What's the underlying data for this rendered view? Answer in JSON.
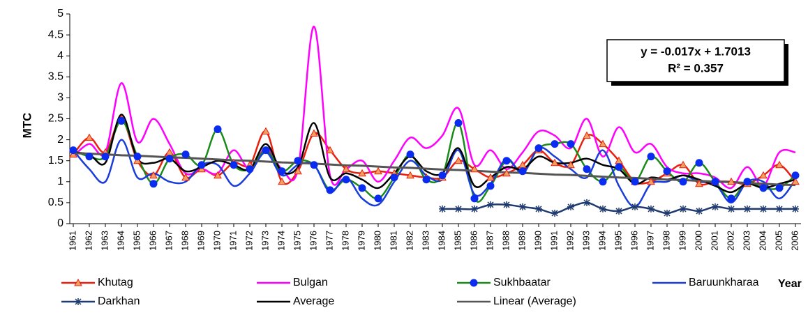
{
  "chart_data": {
    "type": "line",
    "y_label": "MTC",
    "x_label": "Year",
    "annotation": [
      "y = -0.017x + 1.7013",
      "R² = 0.357"
    ],
    "categories": [
      "1961",
      "1962",
      "1963",
      "1964",
      "1965",
      "1966",
      "1967",
      "1968",
      "1969",
      "1970",
      "1971",
      "1972",
      "1973",
      "1974",
      "1975",
      "1976",
      "1977",
      "1978",
      "1979",
      "1980",
      "1981",
      "1982",
      "1983",
      "1984",
      "1985",
      "1986",
      "1987",
      "1988",
      "1989",
      "1990",
      "1991",
      "1992",
      "1993",
      "1994",
      "1995",
      "1996",
      "1997",
      "1998",
      "1999",
      "2000",
      "2001",
      "2002",
      "2003",
      "2004",
      "2005",
      "2006"
    ],
    "ylim": [
      0,
      5
    ],
    "yticks": [
      0,
      0.5,
      1,
      1.5,
      2,
      2.5,
      3,
      3.5,
      4,
      4.5,
      5
    ],
    "smooth": true,
    "series": [
      {
        "name": "Khutag",
        "color": "#e8200f",
        "marker": "triangle",
        "marker_color": "#f0a060",
        "values": [
          1.65,
          2.05,
          1.7,
          2.5,
          1.5,
          1.15,
          1.7,
          1.1,
          1.3,
          1.15,
          1.45,
          1.4,
          2.2,
          1.0,
          1.25,
          2.15,
          1.75,
          1.3,
          1.2,
          1.25,
          1.2,
          1.15,
          1.1,
          1.1,
          1.5,
          1.3,
          1.1,
          1.2,
          1.4,
          1.75,
          1.45,
          1.4,
          2.1,
          1.9,
          1.5,
          1.0,
          1.0,
          1.2,
          1.4,
          0.95,
          1.0,
          1.0,
          0.95,
          1.15,
          1.4,
          1.0
        ]
      },
      {
        "name": "Bulgan",
        "color": "#ff00ff",
        "values": [
          1.6,
          1.9,
          1.7,
          3.35,
          1.95,
          2.5,
          1.9,
          1.2,
          1.3,
          1.2,
          1.75,
          1.3,
          1.8,
          1.3,
          1.3,
          4.7,
          1.15,
          1.3,
          1.5,
          1.0,
          1.5,
          2.05,
          1.8,
          2.1,
          2.75,
          1.4,
          1.75,
          1.3,
          1.7,
          2.2,
          2.1,
          1.8,
          2.5,
          1.6,
          2.3,
          1.7,
          1.9,
          1.35,
          1.2,
          1.2,
          1.1,
          0.85,
          1.35,
          0.9,
          1.7,
          1.7
        ]
      },
      {
        "name": "Sukhbaatar",
        "color": "#1a8a1a",
        "marker": "circle",
        "marker_color": "#0a2cf0",
        "values": [
          1.75,
          1.6,
          1.6,
          2.45,
          1.6,
          0.95,
          1.55,
          1.65,
          1.4,
          2.25,
          1.4,
          1.3,
          1.75,
          1.25,
          1.5,
          1.4,
          0.8,
          1.05,
          0.85,
          0.6,
          1.1,
          1.65,
          1.05,
          1.15,
          2.4,
          0.6,
          0.9,
          1.5,
          1.25,
          1.8,
          1.9,
          1.9,
          1.3,
          1.0,
          1.35,
          1.0,
          1.6,
          1.25,
          1.0,
          1.45,
          1.0,
          0.6,
          1.0,
          0.85,
          0.85,
          1.15
        ]
      },
      {
        "name": "Baruunkharaa",
        "color": "#1a3cd8",
        "values": [
          1.75,
          1.3,
          1.0,
          2.0,
          1.1,
          1.2,
          1.0,
          1.0,
          1.4,
          1.4,
          0.9,
          1.2,
          1.7,
          1.15,
          1.4,
          1.4,
          0.75,
          1.1,
          0.6,
          0.45,
          1.0,
          1.5,
          1.15,
          1.05,
          1.75,
          0.7,
          0.95,
          1.55,
          1.2,
          1.8,
          1.6,
          1.3,
          1.1,
          1.75,
          0.9,
          0.4,
          0.95,
          1.0,
          1.15,
          1.0,
          0.95,
          0.5,
          1.0,
          1.0,
          0.6,
          1.05
        ]
      },
      {
        "name": "Darkhan",
        "color": "#1f3a70",
        "marker": "asterisk",
        "marker_color": "#1f3a70",
        "values": [
          null,
          null,
          null,
          null,
          null,
          null,
          null,
          null,
          null,
          null,
          null,
          null,
          null,
          null,
          null,
          null,
          null,
          null,
          null,
          null,
          null,
          null,
          null,
          0.35,
          0.35,
          0.35,
          0.45,
          0.45,
          0.4,
          0.35,
          0.25,
          0.4,
          0.5,
          0.35,
          0.3,
          0.4,
          0.35,
          0.25,
          0.35,
          0.3,
          0.4,
          0.35,
          0.35,
          0.35,
          0.35,
          0.35
        ]
      },
      {
        "name": "Average",
        "color": "#000000",
        "values": [
          1.7,
          1.65,
          1.45,
          2.6,
          1.55,
          1.45,
          1.55,
          1.25,
          1.35,
          1.5,
          1.4,
          1.3,
          1.9,
          1.25,
          1.35,
          2.4,
          1.1,
          1.2,
          1.05,
          0.85,
          1.2,
          1.6,
          1.25,
          1.2,
          1.8,
          0.9,
          1.1,
          1.35,
          1.3,
          1.6,
          1.45,
          1.45,
          1.55,
          1.4,
          1.3,
          0.95,
          1.1,
          1.05,
          1.15,
          1.05,
          0.9,
          0.75,
          0.95,
          0.85,
          0.95,
          1.05
        ]
      },
      {
        "name": "Linear (Average)",
        "color": "#555555",
        "straight": true,
        "values": [
          1.68,
          1.67,
          1.65,
          1.63,
          1.62,
          1.6,
          1.58,
          1.57,
          1.55,
          1.53,
          1.51,
          1.5,
          1.48,
          1.46,
          1.45,
          1.43,
          1.41,
          1.39,
          1.38,
          1.36,
          1.34,
          1.33,
          1.31,
          1.29,
          1.28,
          1.26,
          1.24,
          1.22,
          1.21,
          1.19,
          1.17,
          1.16,
          1.14,
          1.12,
          1.1,
          1.09,
          1.07,
          1.05,
          1.04,
          1.02,
          1.0,
          0.99,
          0.97,
          0.95,
          0.93,
          0.92
        ]
      }
    ]
  }
}
